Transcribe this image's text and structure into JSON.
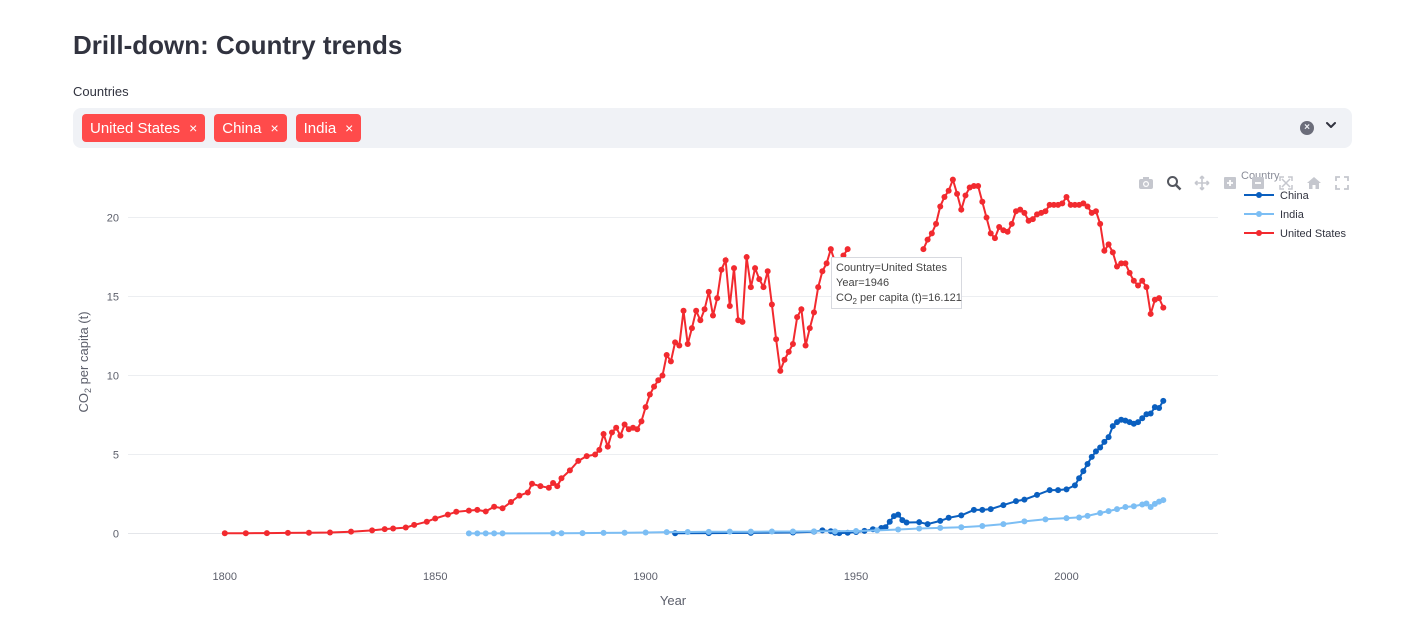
{
  "page": {
    "title": "Drill-down: Country trends"
  },
  "selector": {
    "label": "Countries",
    "chips": [
      {
        "label": "United States",
        "remove": "×"
      },
      {
        "label": "China",
        "remove": "×"
      },
      {
        "label": "India",
        "remove": "×"
      }
    ],
    "clear_all": "×"
  },
  "colors": {
    "united_states": "#f22a2f",
    "china": "#0a5fbf",
    "india": "#7cbef4",
    "chip": "#ff4b4b"
  },
  "modebar": [
    "camera-icon",
    "zoom-icon",
    "pan-icon",
    "zoom-in-icon",
    "zoom-out-icon",
    "autoscale-icon",
    "home-icon",
    "fullscreen-icon"
  ],
  "tooltip": {
    "line1": "Country=United States",
    "line2": "Year=1946",
    "line3_prefix": "CO",
    "line3_sub": "2",
    "line3_suffix": " per capita (t)=16.121"
  },
  "chart_data": {
    "type": "line",
    "title": "",
    "xlabel": "Year",
    "ylabel_prefix": "CO",
    "ylabel_sub": "2",
    "ylabel_suffix": " per capita (t)",
    "xlim": [
      1777,
      2036
    ],
    "ylim": [
      -1.8,
      23.2
    ],
    "x_ticks": [
      1800,
      1850,
      1900,
      1950,
      2000
    ],
    "y_ticks": [
      0,
      5,
      10,
      15,
      20
    ],
    "grid": true,
    "legend_title": "Country",
    "legend_position": "top-right",
    "series": [
      {
        "name": "China",
        "color_key": "china",
        "points": [
          [
            1907,
            0.02
          ],
          [
            1915,
            0.03
          ],
          [
            1925,
            0.04
          ],
          [
            1935,
            0.07
          ],
          [
            1940,
            0.12
          ],
          [
            1942,
            0.2
          ],
          [
            1944,
            0.15
          ],
          [
            1945,
            0.05
          ],
          [
            1946,
            0.03
          ],
          [
            1948,
            0.05
          ],
          [
            1950,
            0.1
          ],
          [
            1952,
            0.17
          ],
          [
            1954,
            0.27
          ],
          [
            1956,
            0.35
          ],
          [
            1957,
            0.4
          ],
          [
            1958,
            0.75
          ],
          [
            1959,
            1.1
          ],
          [
            1960,
            1.2
          ],
          [
            1961,
            0.85
          ],
          [
            1962,
            0.7
          ],
          [
            1965,
            0.72
          ],
          [
            1967,
            0.6
          ],
          [
            1970,
            0.8
          ],
          [
            1972,
            1.0
          ],
          [
            1975,
            1.15
          ],
          [
            1978,
            1.5
          ],
          [
            1980,
            1.5
          ],
          [
            1982,
            1.55
          ],
          [
            1985,
            1.8
          ],
          [
            1988,
            2.05
          ],
          [
            1990,
            2.15
          ],
          [
            1993,
            2.45
          ],
          [
            1996,
            2.75
          ],
          [
            1998,
            2.75
          ],
          [
            2000,
            2.8
          ],
          [
            2002,
            3.05
          ],
          [
            2003,
            3.5
          ],
          [
            2004,
            3.95
          ],
          [
            2005,
            4.4
          ],
          [
            2006,
            4.85
          ],
          [
            2007,
            5.2
          ],
          [
            2008,
            5.45
          ],
          [
            2009,
            5.8
          ],
          [
            2010,
            6.1
          ],
          [
            2011,
            6.8
          ],
          [
            2012,
            7.05
          ],
          [
            2013,
            7.2
          ],
          [
            2014,
            7.15
          ],
          [
            2015,
            7.05
          ],
          [
            2016,
            6.95
          ],
          [
            2017,
            7.05
          ],
          [
            2018,
            7.3
          ],
          [
            2019,
            7.55
          ],
          [
            2020,
            7.6
          ],
          [
            2021,
            8.0
          ],
          [
            2022,
            7.95
          ],
          [
            2023,
            8.4
          ]
        ]
      },
      {
        "name": "India",
        "color_key": "india",
        "points": [
          [
            1858,
            0.01
          ],
          [
            1860,
            0.01
          ],
          [
            1862,
            0.01
          ],
          [
            1864,
            0.01
          ],
          [
            1866,
            0.01
          ],
          [
            1878,
            0.02
          ],
          [
            1880,
            0.02
          ],
          [
            1885,
            0.03
          ],
          [
            1890,
            0.04
          ],
          [
            1895,
            0.05
          ],
          [
            1900,
            0.07
          ],
          [
            1905,
            0.09
          ],
          [
            1910,
            0.1
          ],
          [
            1915,
            0.11
          ],
          [
            1920,
            0.12
          ],
          [
            1925,
            0.12
          ],
          [
            1930,
            0.13
          ],
          [
            1935,
            0.13
          ],
          [
            1940,
            0.14
          ],
          [
            1945,
            0.14
          ],
          [
            1950,
            0.16
          ],
          [
            1955,
            0.2
          ],
          [
            1960,
            0.26
          ],
          [
            1965,
            0.32
          ],
          [
            1970,
            0.36
          ],
          [
            1975,
            0.4
          ],
          [
            1980,
            0.48
          ],
          [
            1985,
            0.6
          ],
          [
            1990,
            0.77
          ],
          [
            1995,
            0.9
          ],
          [
            2000,
            0.98
          ],
          [
            2003,
            1.02
          ],
          [
            2005,
            1.12
          ],
          [
            2008,
            1.3
          ],
          [
            2010,
            1.42
          ],
          [
            2012,
            1.55
          ],
          [
            2014,
            1.68
          ],
          [
            2016,
            1.73
          ],
          [
            2018,
            1.84
          ],
          [
            2019,
            1.9
          ],
          [
            2020,
            1.68
          ],
          [
            2021,
            1.88
          ],
          [
            2022,
            2.02
          ],
          [
            2023,
            2.12
          ]
        ]
      },
      {
        "name": "United States",
        "color_key": "united_states",
        "points": [
          [
            1800,
            0.02
          ],
          [
            1805,
            0.02
          ],
          [
            1810,
            0.03
          ],
          [
            1815,
            0.04
          ],
          [
            1820,
            0.05
          ],
          [
            1825,
            0.07
          ],
          [
            1830,
            0.12
          ],
          [
            1835,
            0.2
          ],
          [
            1838,
            0.28
          ],
          [
            1840,
            0.32
          ],
          [
            1843,
            0.38
          ],
          [
            1845,
            0.55
          ],
          [
            1848,
            0.75
          ],
          [
            1850,
            0.95
          ],
          [
            1853,
            1.2
          ],
          [
            1855,
            1.38
          ],
          [
            1858,
            1.45
          ],
          [
            1860,
            1.5
          ],
          [
            1862,
            1.4
          ],
          [
            1864,
            1.7
          ],
          [
            1866,
            1.6
          ],
          [
            1868,
            2.0
          ],
          [
            1870,
            2.4
          ],
          [
            1872,
            2.6
          ],
          [
            1873,
            3.15
          ],
          [
            1875,
            3.0
          ],
          [
            1877,
            2.9
          ],
          [
            1878,
            3.2
          ],
          [
            1879,
            3.0
          ],
          [
            1880,
            3.5
          ],
          [
            1882,
            4.0
          ],
          [
            1884,
            4.6
          ],
          [
            1886,
            4.9
          ],
          [
            1888,
            5.0
          ],
          [
            1889,
            5.3
          ],
          [
            1890,
            6.3
          ],
          [
            1891,
            5.5
          ],
          [
            1892,
            6.4
          ],
          [
            1893,
            6.7
          ],
          [
            1894,
            6.2
          ],
          [
            1895,
            6.9
          ],
          [
            1896,
            6.6
          ],
          [
            1897,
            6.7
          ],
          [
            1898,
            6.6
          ],
          [
            1899,
            7.1
          ],
          [
            1900,
            8.0
          ],
          [
            1901,
            8.8
          ],
          [
            1902,
            9.3
          ],
          [
            1903,
            9.7
          ],
          [
            1904,
            10.0
          ],
          [
            1905,
            11.3
          ],
          [
            1906,
            10.9
          ],
          [
            1907,
            12.1
          ],
          [
            1908,
            11.9
          ],
          [
            1909,
            14.1
          ],
          [
            1910,
            12.0
          ],
          [
            1911,
            13.0
          ],
          [
            1912,
            14.1
          ],
          [
            1913,
            13.5
          ],
          [
            1914,
            14.2
          ],
          [
            1915,
            15.3
          ],
          [
            1916,
            13.8
          ],
          [
            1917,
            14.9
          ],
          [
            1918,
            16.7
          ],
          [
            1919,
            17.3
          ],
          [
            1920,
            14.4
          ],
          [
            1921,
            16.8
          ],
          [
            1922,
            13.5
          ],
          [
            1923,
            13.4
          ],
          [
            1924,
            17.5
          ],
          [
            1925,
            15.6
          ],
          [
            1926,
            16.8
          ],
          [
            1927,
            16.1
          ],
          [
            1928,
            15.6
          ],
          [
            1929,
            16.6
          ],
          [
            1930,
            14.5
          ],
          [
            1931,
            12.3
          ],
          [
            1932,
            10.3
          ],
          [
            1933,
            11.0
          ],
          [
            1934,
            11.5
          ],
          [
            1935,
            12.0
          ],
          [
            1936,
            13.7
          ],
          [
            1937,
            14.2
          ],
          [
            1938,
            11.9
          ],
          [
            1939,
            13.0
          ],
          [
            1940,
            14.0
          ],
          [
            1941,
            15.6
          ],
          [
            1942,
            16.6
          ],
          [
            1943,
            17.1
          ],
          [
            1944,
            18.0
          ],
          [
            1945,
            17.2
          ],
          [
            1946,
            16.121
          ],
          [
            1947,
            17.6
          ],
          [
            1948,
            18.0
          ],
          [
            1966,
            18.0
          ],
          [
            1967,
            18.6
          ],
          [
            1968,
            19.0
          ],
          [
            1969,
            19.6
          ],
          [
            1970,
            20.7
          ],
          [
            1971,
            21.3
          ],
          [
            1972,
            21.7
          ],
          [
            1973,
            22.4
          ],
          [
            1974,
            21.5
          ],
          [
            1975,
            20.5
          ],
          [
            1976,
            21.4
          ],
          [
            1977,
            21.9
          ],
          [
            1978,
            22.0
          ],
          [
            1979,
            22.0
          ],
          [
            1980,
            21.0
          ],
          [
            1981,
            20.0
          ],
          [
            1982,
            19.0
          ],
          [
            1983,
            18.7
          ],
          [
            1984,
            19.4
          ],
          [
            1985,
            19.2
          ],
          [
            1986,
            19.1
          ],
          [
            1987,
            19.6
          ],
          [
            1988,
            20.4
          ],
          [
            1989,
            20.5
          ],
          [
            1990,
            20.3
          ],
          [
            1991,
            19.8
          ],
          [
            1992,
            19.9
          ],
          [
            1993,
            20.2
          ],
          [
            1994,
            20.3
          ],
          [
            1995,
            20.4
          ],
          [
            1996,
            20.8
          ],
          [
            1997,
            20.8
          ],
          [
            1998,
            20.8
          ],
          [
            1999,
            20.9
          ],
          [
            2000,
            21.3
          ],
          [
            2001,
            20.8
          ],
          [
            2002,
            20.8
          ],
          [
            2003,
            20.8
          ],
          [
            2004,
            20.9
          ],
          [
            2005,
            20.7
          ],
          [
            2006,
            20.3
          ],
          [
            2007,
            20.4
          ],
          [
            2008,
            19.6
          ],
          [
            2009,
            17.9
          ],
          [
            2010,
            18.3
          ],
          [
            2011,
            17.8
          ],
          [
            2012,
            16.9
          ],
          [
            2013,
            17.1
          ],
          [
            2014,
            17.1
          ],
          [
            2015,
            16.5
          ],
          [
            2016,
            16.0
          ],
          [
            2017,
            15.7
          ],
          [
            2018,
            16.0
          ],
          [
            2019,
            15.6
          ],
          [
            2020,
            13.9
          ],
          [
            2021,
            14.8
          ],
          [
            2022,
            14.9
          ],
          [
            2023,
            14.3
          ]
        ]
      }
    ]
  }
}
